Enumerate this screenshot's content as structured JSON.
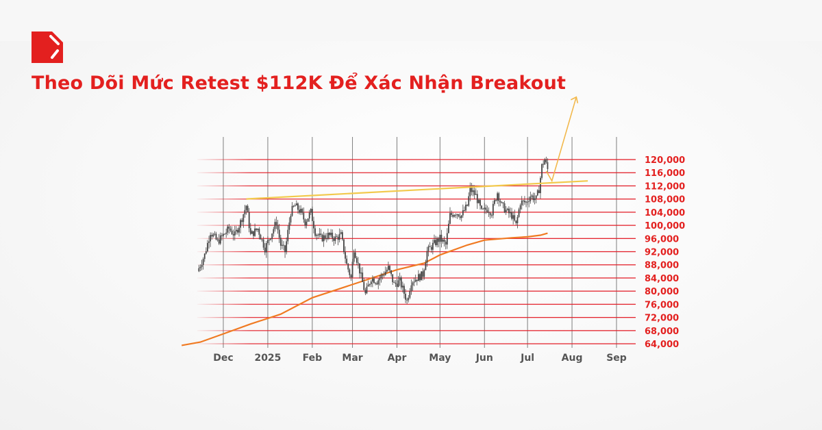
{
  "header": {
    "title": "Theo Dõi Mức Retest $112K Để Xác Nhận Breakout",
    "logo_icon": "brand-logo-icon"
  },
  "colors": {
    "brand": "#e3201f",
    "grid_h": "#e3202a",
    "grid_v": "#555555",
    "candles": "#444444",
    "moving_average": "#f07a22",
    "trendline": "#f2c94c",
    "projection": "#f2b84b"
  },
  "chart_data": {
    "type": "candlestick",
    "title": "",
    "xlabel": "",
    "ylabel": "",
    "ylim": [
      64000,
      120000
    ],
    "xlim": [
      "2024-11-02",
      "2025-09-12"
    ],
    "y_ticks": [
      64000,
      68000,
      72000,
      76000,
      80000,
      84000,
      88000,
      92000,
      96000,
      100000,
      104000,
      108000,
      112000,
      116000,
      120000
    ],
    "y_tick_labels": [
      "64,000",
      "68,000",
      "72,000",
      "76,000",
      "80,000",
      "84,000",
      "88,000",
      "92,000",
      "96,000",
      "100,000",
      "104,000",
      "108,000",
      "112,000",
      "116,000",
      "120,000"
    ],
    "x_ticks": [
      "2024-12-01",
      "2025-01-01",
      "2025-02-01",
      "2025-03-01",
      "2025-04-01",
      "2025-05-01",
      "2025-06-01",
      "2025-07-01",
      "2025-08-01",
      "2025-09-01"
    ],
    "x_tick_labels": [
      "Dec",
      "2025",
      "Feb",
      "Mar",
      "Apr",
      "May",
      "Jun",
      "Jul",
      "Aug",
      "Sep"
    ],
    "grid": true,
    "price": [
      [
        "2024-11-13",
        86000
      ],
      [
        "2024-11-18",
        91000
      ],
      [
        "2024-11-22",
        98000
      ],
      [
        "2024-11-27",
        95000
      ],
      [
        "2024-12-01",
        97000
      ],
      [
        "2024-12-05",
        99000
      ],
      [
        "2024-12-09",
        97000
      ],
      [
        "2024-12-13",
        101000
      ],
      [
        "2024-12-17",
        106000
      ],
      [
        "2024-12-20",
        97000
      ],
      [
        "2024-12-25",
        99000
      ],
      [
        "2024-12-30",
        93000
      ],
      [
        "2025-01-03",
        97000
      ],
      [
        "2025-01-07",
        101000
      ],
      [
        "2025-01-10",
        94000
      ],
      [
        "2025-01-13",
        92000
      ],
      [
        "2025-01-17",
        104000
      ],
      [
        "2025-01-20",
        106000
      ],
      [
        "2025-01-24",
        104000
      ],
      [
        "2025-01-27",
        101000
      ],
      [
        "2025-01-31",
        104000
      ],
      [
        "2025-02-03",
        98000
      ],
      [
        "2025-02-07",
        96000
      ],
      [
        "2025-02-12",
        97000
      ],
      [
        "2025-02-17",
        96000
      ],
      [
        "2025-02-21",
        97000
      ],
      [
        "2025-02-25",
        88000
      ],
      [
        "2025-02-28",
        84000
      ],
      [
        "2025-03-02",
        93000
      ],
      [
        "2025-03-05",
        88000
      ],
      [
        "2025-03-10",
        79000
      ],
      [
        "2025-03-14",
        84000
      ],
      [
        "2025-03-18",
        83000
      ],
      [
        "2025-03-22",
        85000
      ],
      [
        "2025-03-26",
        87000
      ],
      [
        "2025-03-30",
        82000
      ],
      [
        "2025-04-03",
        83000
      ],
      [
        "2025-04-08",
        77000
      ],
      [
        "2025-04-11",
        83000
      ],
      [
        "2025-04-15",
        84000
      ],
      [
        "2025-04-19",
        85000
      ],
      [
        "2025-04-22",
        92000
      ],
      [
        "2025-04-26",
        94000
      ],
      [
        "2025-05-01",
        96000
      ],
      [
        "2025-05-05",
        94000
      ],
      [
        "2025-05-08",
        103000
      ],
      [
        "2025-05-12",
        104000
      ],
      [
        "2025-05-16",
        103000
      ],
      [
        "2025-05-20",
        106000
      ],
      [
        "2025-05-22",
        111000
      ],
      [
        "2025-05-26",
        109000
      ],
      [
        "2025-05-30",
        104000
      ],
      [
        "2025-06-03",
        105000
      ],
      [
        "2025-06-06",
        104000
      ],
      [
        "2025-06-10",
        110000
      ],
      [
        "2025-06-13",
        106000
      ],
      [
        "2025-06-17",
        104000
      ],
      [
        "2025-06-20",
        103000
      ],
      [
        "2025-06-23",
        100000
      ],
      [
        "2025-06-26",
        107000
      ],
      [
        "2025-06-30",
        107000
      ],
      [
        "2025-07-03",
        109000
      ],
      [
        "2025-07-07",
        108000
      ],
      [
        "2025-07-09",
        111000
      ],
      [
        "2025-07-11",
        118000
      ],
      [
        "2025-07-13",
        120000
      ],
      [
        "2025-07-15",
        117000
      ]
    ],
    "moving_average": [
      [
        "2024-11-02",
        63500
      ],
      [
        "2024-11-15",
        64500
      ],
      [
        "2024-12-01",
        67000
      ],
      [
        "2024-12-20",
        70000
      ],
      [
        "2025-01-10",
        73000
      ],
      [
        "2025-02-01",
        78000
      ],
      [
        "2025-03-01",
        82000
      ],
      [
        "2025-04-01",
        86500
      ],
      [
        "2025-04-20",
        88500
      ],
      [
        "2025-05-01",
        91000
      ],
      [
        "2025-05-20",
        94000
      ],
      [
        "2025-06-01",
        95500
      ],
      [
        "2025-06-20",
        96200
      ],
      [
        "2025-07-01",
        96500
      ],
      [
        "2025-07-10",
        97000
      ],
      [
        "2025-07-15",
        97600
      ]
    ],
    "trendline": [
      [
        "2024-12-17",
        108000
      ],
      [
        "2025-08-12",
        113500
      ]
    ],
    "projection": [
      [
        "2025-07-14",
        116500
      ],
      [
        "2025-07-18",
        113500
      ],
      [
        "2025-08-04",
        139000
      ]
    ]
  }
}
